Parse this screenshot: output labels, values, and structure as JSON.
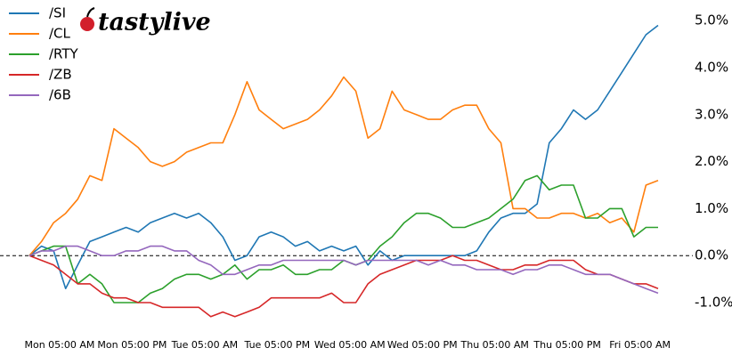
{
  "chart_data": {
    "type": "line",
    "logo": "tastylive",
    "x": [
      0,
      2,
      4,
      6,
      8,
      10,
      12,
      14,
      16,
      18,
      20,
      22,
      24,
      26,
      28,
      30,
      32,
      34,
      36,
      38,
      40,
      42,
      44,
      46,
      48,
      50,
      52,
      54,
      56,
      58,
      60,
      62,
      64,
      66,
      68,
      70,
      72,
      74,
      76,
      78,
      80,
      82,
      84,
      86,
      88,
      90,
      92,
      94,
      96,
      98,
      100,
      102,
      104
    ],
    "xlim": [
      0,
      104
    ],
    "xticks": [
      {
        "value": 5,
        "label": "Mon 05:00 AM"
      },
      {
        "value": 17,
        "label": "Mon 05:00 PM"
      },
      {
        "value": 29,
        "label": "Tue 05:00 AM"
      },
      {
        "value": 41,
        "label": "Tue 05:00 PM"
      },
      {
        "value": 53,
        "label": "Wed 05:00 AM"
      },
      {
        "value": 65,
        "label": "Wed 05:00 PM"
      },
      {
        "value": 77,
        "label": "Thu 05:00 AM"
      },
      {
        "value": 89,
        "label": "Thu 05:00 PM"
      },
      {
        "value": 101,
        "label": "Fri 05:00 AM"
      }
    ],
    "ylim": [
      -1.5,
      5.25
    ],
    "yticks": [
      {
        "value": -1,
        "label": "-1.0%"
      },
      {
        "value": 0,
        "label": "0.0%"
      },
      {
        "value": 1,
        "label": "1.0%"
      },
      {
        "value": 2,
        "label": "2.0%"
      },
      {
        "value": 3,
        "label": "3.0%"
      },
      {
        "value": 4,
        "label": "4.0%"
      },
      {
        "value": 5,
        "label": "5.0%"
      }
    ],
    "hline": 0,
    "legend": "upper left",
    "series": [
      {
        "name": "/SI",
        "color": "#1f77b4",
        "values": [
          0,
          0.2,
          0.1,
          -0.7,
          -0.2,
          0.3,
          0.4,
          0.5,
          0.6,
          0.5,
          0.7,
          0.8,
          0.9,
          0.8,
          0.9,
          0.7,
          0.4,
          -0.1,
          0.0,
          0.4,
          0.5,
          0.4,
          0.2,
          0.3,
          0.1,
          0.2,
          0.1,
          0.2,
          -0.2,
          0.1,
          -0.1,
          0.0,
          0.0,
          0.0,
          0.0,
          0.0,
          0.0,
          0.1,
          0.5,
          0.8,
          0.9,
          0.9,
          1.1,
          2.4,
          2.7,
          3.1,
          2.9,
          3.1,
          3.5,
          3.9,
          4.3,
          4.7,
          4.9
        ]
      },
      {
        "name": "/CL",
        "color": "#ff7f0e",
        "values": [
          0,
          0.3,
          0.7,
          0.9,
          1.2,
          1.7,
          1.6,
          2.7,
          2.5,
          2.3,
          2.0,
          1.9,
          2.0,
          2.2,
          2.3,
          2.4,
          2.4,
          3.0,
          3.7,
          3.1,
          2.9,
          2.7,
          2.8,
          2.9,
          3.1,
          3.4,
          3.8,
          3.5,
          2.5,
          2.7,
          3.5,
          3.1,
          3.0,
          2.9,
          2.9,
          3.1,
          3.2,
          3.2,
          2.7,
          2.4,
          1.0,
          1.0,
          0.8,
          0.8,
          0.9,
          0.9,
          0.8,
          0.9,
          0.7,
          0.8,
          0.5,
          1.5,
          1.6
        ]
      },
      {
        "name": "/RTY",
        "color": "#2ca02c",
        "values": [
          0,
          0.1,
          0.2,
          0.2,
          -0.6,
          -0.4,
          -0.6,
          -1.0,
          -1.0,
          -1.0,
          -0.8,
          -0.7,
          -0.5,
          -0.4,
          -0.4,
          -0.5,
          -0.4,
          -0.2,
          -0.5,
          -0.3,
          -0.3,
          -0.2,
          -0.4,
          -0.4,
          -0.3,
          -0.3,
          -0.1,
          -0.2,
          -0.1,
          0.2,
          0.4,
          0.7,
          0.9,
          0.9,
          0.8,
          0.6,
          0.6,
          0.7,
          0.8,
          1.0,
          1.2,
          1.6,
          1.7,
          1.4,
          1.5,
          1.5,
          0.8,
          0.8,
          1.0,
          1.0,
          0.4,
          0.6,
          0.6
        ]
      },
      {
        "name": "/ZB",
        "color": "#d62728",
        "values": [
          0,
          -0.1,
          -0.2,
          -0.4,
          -0.6,
          -0.6,
          -0.8,
          -0.9,
          -0.9,
          -1.0,
          -1.0,
          -1.1,
          -1.1,
          -1.1,
          -1.1,
          -1.3,
          -1.2,
          -1.3,
          -1.2,
          -1.1,
          -0.9,
          -0.9,
          -0.9,
          -0.9,
          -0.9,
          -0.8,
          -1.0,
          -1.0,
          -0.6,
          -0.4,
          -0.3,
          -0.2,
          -0.1,
          -0.1,
          -0.1,
          0.0,
          -0.1,
          -0.1,
          -0.2,
          -0.3,
          -0.3,
          -0.2,
          -0.2,
          -0.1,
          -0.1,
          -0.1,
          -0.3,
          -0.4,
          -0.4,
          -0.5,
          -0.6,
          -0.6,
          -0.7
        ]
      },
      {
        "name": "/6B",
        "color": "#9467bd",
        "values": [
          0,
          0.1,
          0.1,
          0.2,
          0.2,
          0.1,
          0.0,
          0.0,
          0.1,
          0.1,
          0.2,
          0.2,
          0.1,
          0.1,
          -0.1,
          -0.2,
          -0.4,
          -0.4,
          -0.3,
          -0.2,
          -0.2,
          -0.1,
          -0.1,
          -0.1,
          -0.1,
          -0.1,
          -0.1,
          -0.2,
          -0.1,
          -0.1,
          -0.1,
          -0.1,
          -0.1,
          -0.2,
          -0.1,
          -0.2,
          -0.2,
          -0.3,
          -0.3,
          -0.3,
          -0.4,
          -0.3,
          -0.3,
          -0.2,
          -0.2,
          -0.3,
          -0.4,
          -0.4,
          -0.4,
          -0.5,
          -0.6,
          -0.7,
          -0.8
        ]
      }
    ]
  }
}
